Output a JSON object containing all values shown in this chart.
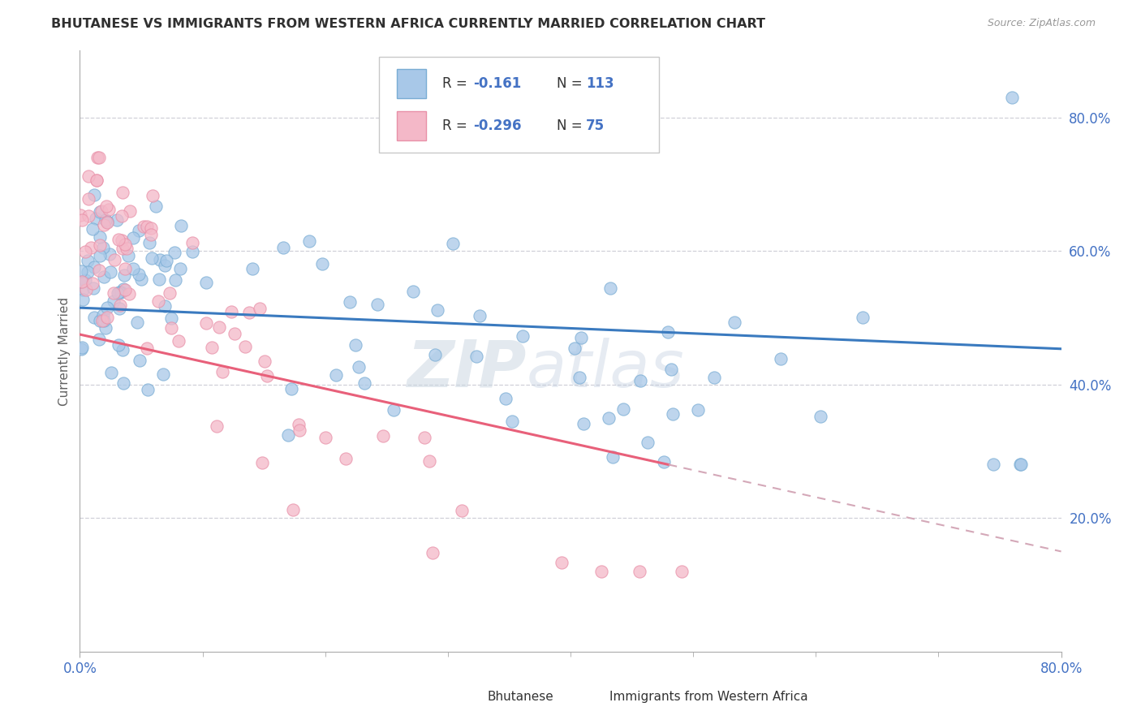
{
  "title": "BHUTANESE VS IMMIGRANTS FROM WESTERN AFRICA CURRENTLY MARRIED CORRELATION CHART",
  "source": "Source: ZipAtlas.com",
  "ylabel": "Currently Married",
  "xlim": [
    0.0,
    0.8
  ],
  "ylim": [
    0.0,
    0.9
  ],
  "y_ticks": [
    0.2,
    0.4,
    0.6,
    0.8
  ],
  "series1_color": "#a8c8e8",
  "series1_edge_color": "#7aadd4",
  "series1_line_color": "#3a7abf",
  "series2_color": "#f4b8c8",
  "series2_edge_color": "#e890a8",
  "series2_line_color": "#e8607a",
  "series2_line_dashed_color": "#d4a8b8",
  "R1": -0.161,
  "N1": 113,
  "R2": -0.296,
  "N2": 75,
  "watermark_zip": "ZIP",
  "watermark_atlas": "atlas",
  "background_color": "#ffffff",
  "grid_color": "#d0d0d8",
  "title_color": "#303030",
  "axis_label_color": "#4472c4",
  "ylabel_color": "#606060"
}
